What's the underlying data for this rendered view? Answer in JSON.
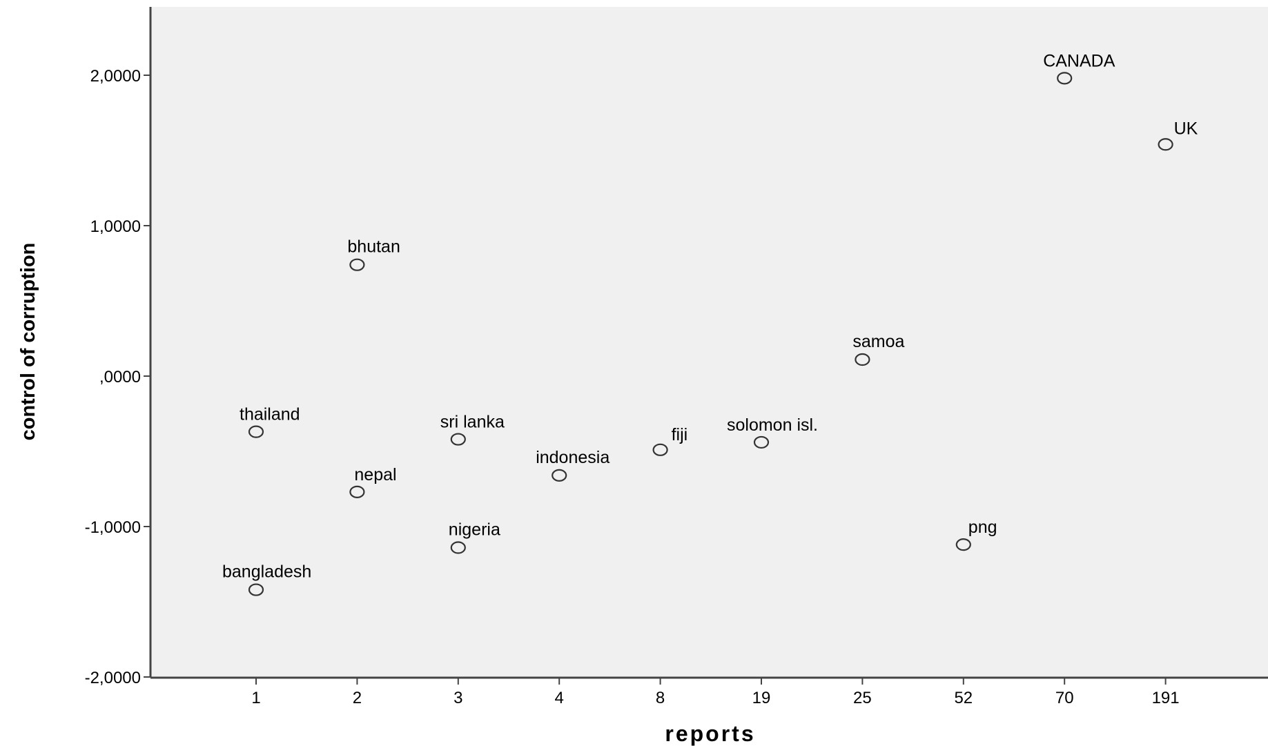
{
  "chart_data": {
    "type": "scatter",
    "title": "",
    "xlabel": "reports",
    "ylabel": "control of corruption",
    "x_axis_kind": "categorical",
    "x_categories": [
      "1",
      "2",
      "3",
      "4",
      "8",
      "19",
      "25",
      "52",
      "70",
      "191"
    ],
    "y_ticks": [
      2,
      1,
      0,
      -1,
      -2
    ],
    "y_tick_labels": [
      "2,0000",
      "1,0000",
      ",0000",
      "-1,0000",
      "-2,0000"
    ],
    "ylim": [
      -2.0,
      2.4
    ],
    "grid": false,
    "legend": "none",
    "marker": "open-circle",
    "background_color": "#f0f0f0",
    "points": [
      {
        "label": "CANADA",
        "x": "70",
        "y": 1.98
      },
      {
        "label": "UK",
        "x": "191",
        "y": 1.54
      },
      {
        "label": "bhutan",
        "x": "2",
        "y": 0.74
      },
      {
        "label": "samoa",
        "x": "25",
        "y": 0.11
      },
      {
        "label": "thailand",
        "x": "1",
        "y": -0.37
      },
      {
        "label": "sri lanka",
        "x": "3",
        "y": -0.42
      },
      {
        "label": "fiji",
        "x": "8",
        "y": -0.49
      },
      {
        "label": "solomon isl.",
        "x": "19",
        "y": -0.44
      },
      {
        "label": "indonesia",
        "x": "4",
        "y": -0.66
      },
      {
        "label": "nepal",
        "x": "2",
        "y": -0.77
      },
      {
        "label": "nigeria",
        "x": "3",
        "y": -1.14
      },
      {
        "label": "png",
        "x": "52",
        "y": -1.12
      },
      {
        "label": "bangladesh",
        "x": "1",
        "y": -1.42
      }
    ]
  }
}
